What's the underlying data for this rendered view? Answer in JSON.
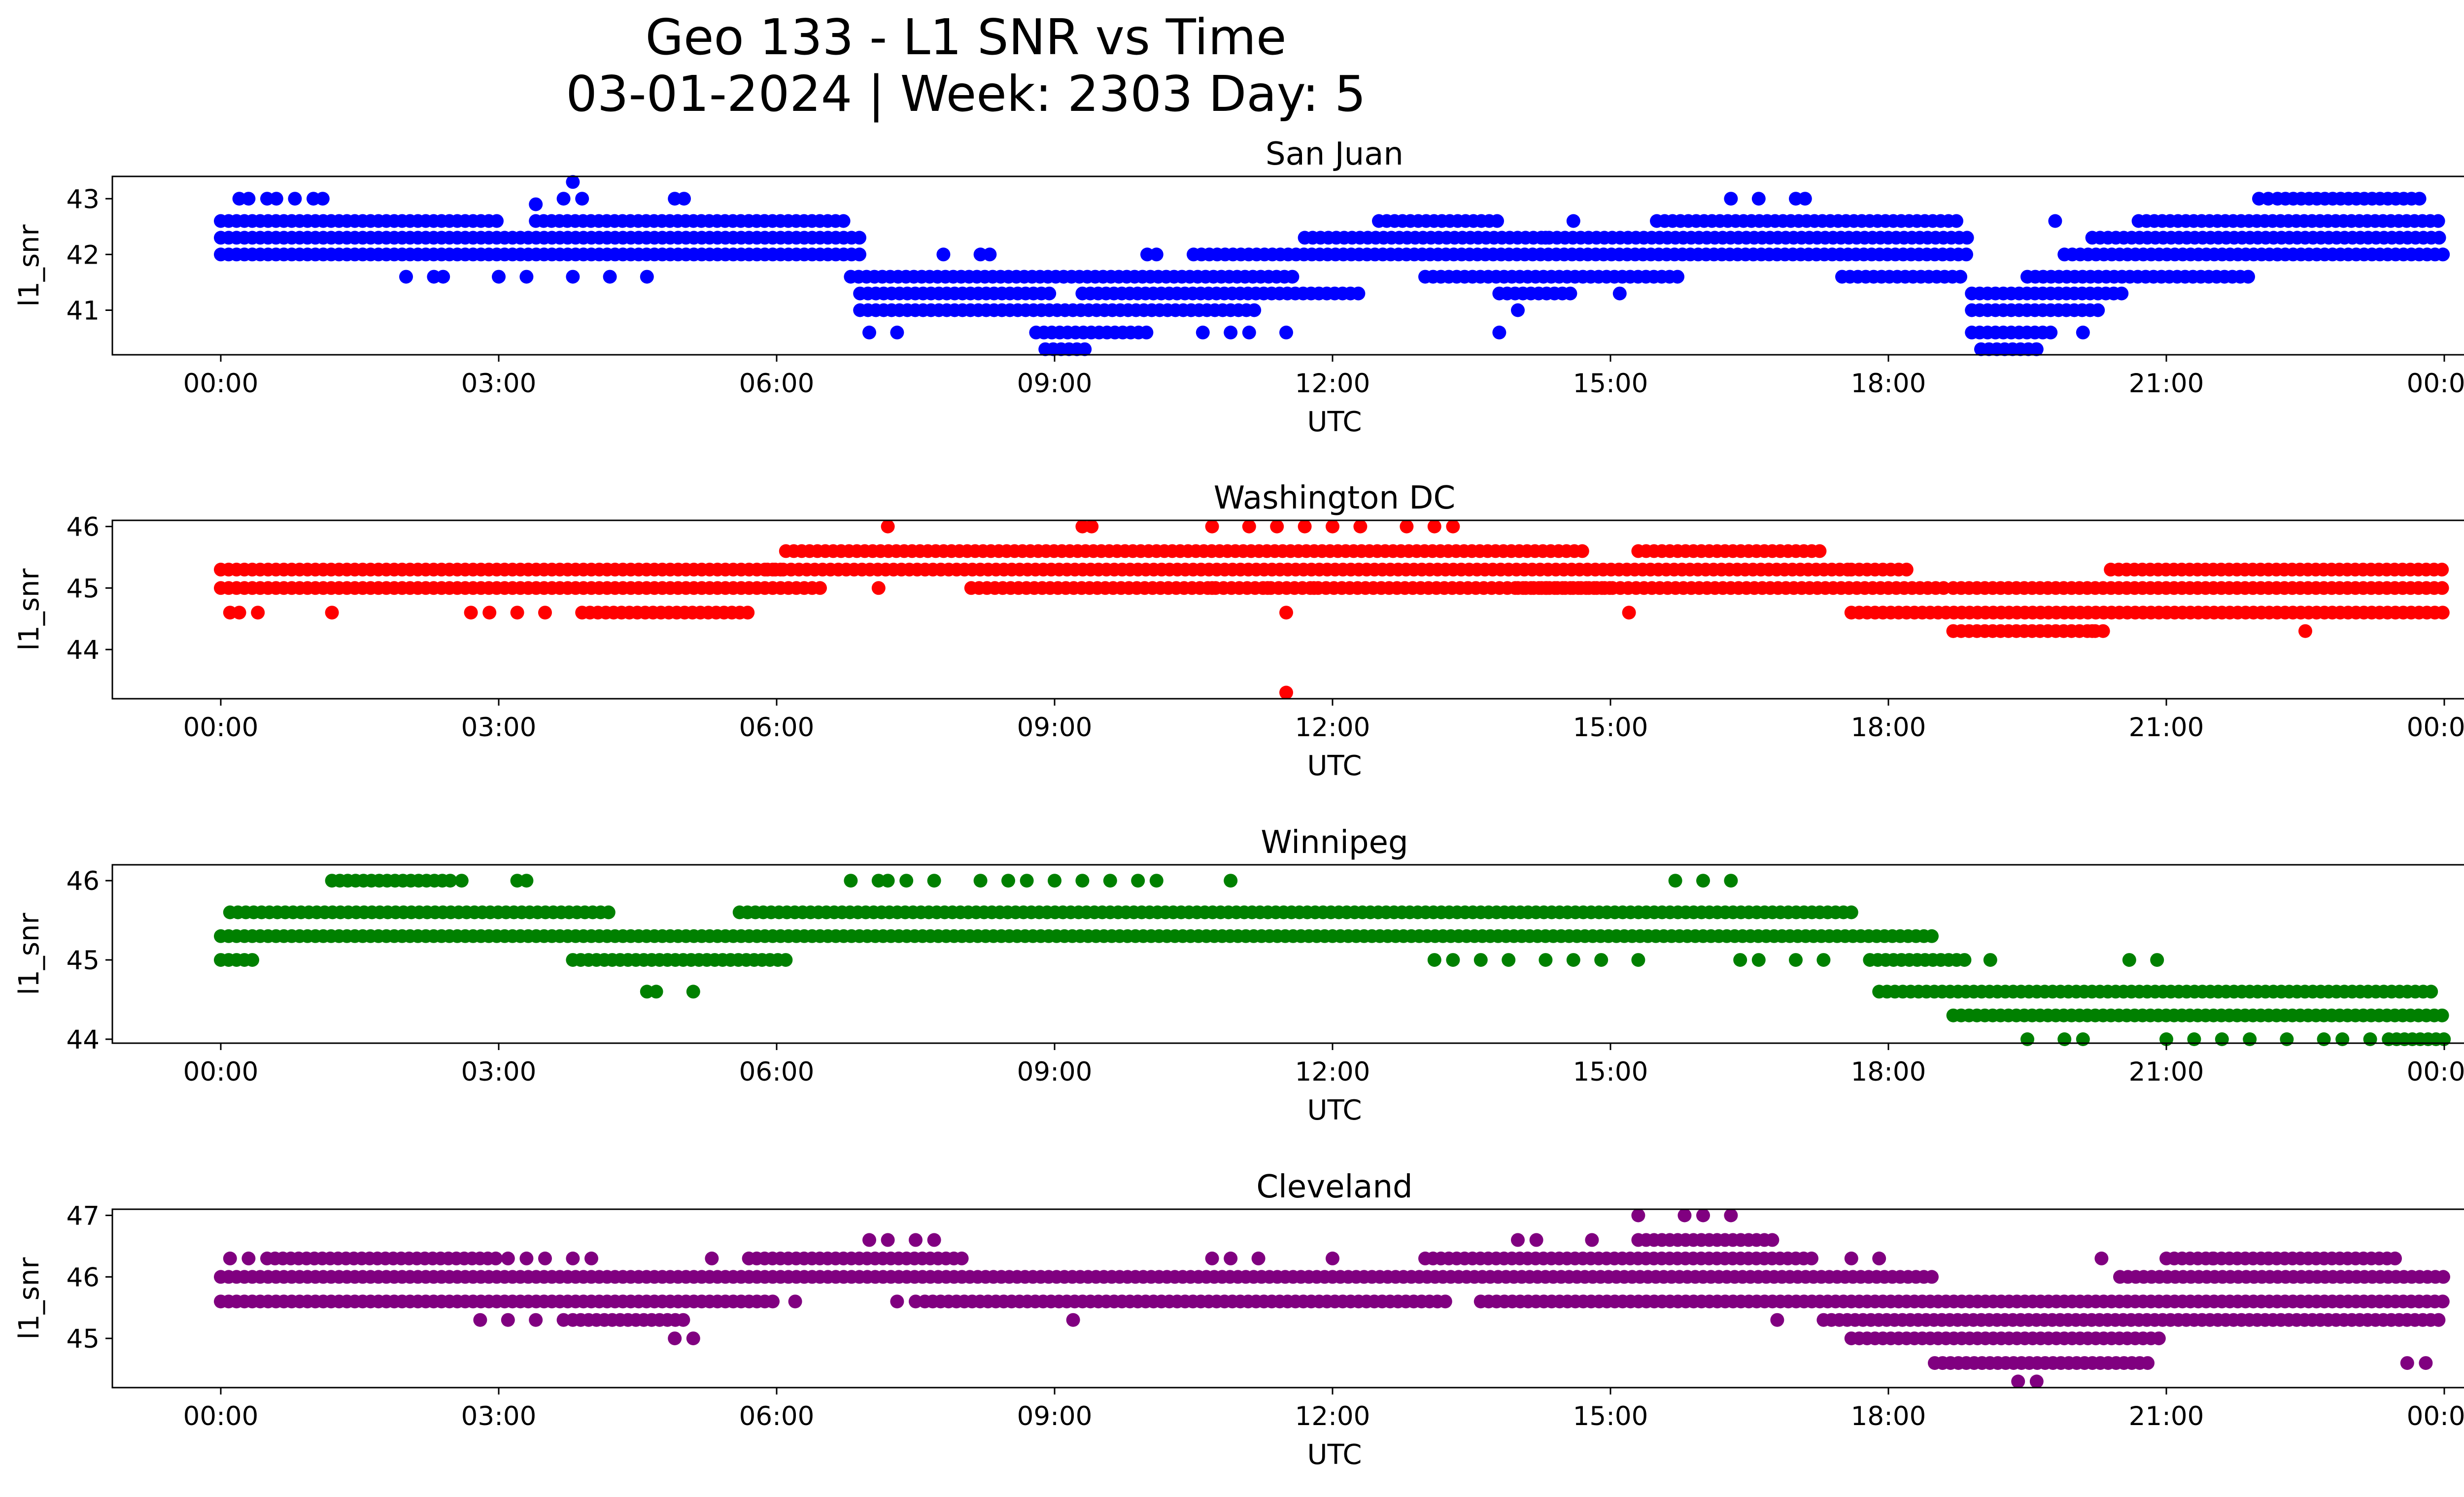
{
  "figure": {
    "title_line1": "Geo 133 - L1 SNR vs Time",
    "title_line2": "03-01-2024 | Week: 2303 Day: 5"
  },
  "chart_data": [
    {
      "type": "scatter",
      "title": "San Juan",
      "xlabel": "UTC",
      "ylabel": "l1_snr",
      "color": "#0000ff",
      "x_tick_labels": [
        "00:00",
        "03:00",
        "06:00",
        "09:00",
        "12:00",
        "15:00",
        "18:00",
        "21:00",
        "00:00"
      ],
      "xlim_hours": [
        0,
        24
      ],
      "ylim": [
        40.2,
        43.4
      ],
      "y_ticks": [
        41,
        42,
        43
      ],
      "grid": false,
      "x_unit": "hours UTC",
      "bands": [
        {
          "y": 42.6,
          "segments": [
            [
              0.0,
              3.0
            ],
            [
              3.4,
              5.9
            ],
            [
              5.7,
              6.8
            ],
            [
              12.5,
              13.8
            ],
            [
              15.5,
              18.8
            ],
            [
              20.7,
              24.0
            ]
          ]
        },
        {
          "y": 42.3,
          "segments": [
            [
              0.0,
              6.9
            ],
            [
              11.7,
              18.9
            ],
            [
              20.2,
              24.0
            ]
          ]
        },
        {
          "y": 42.0,
          "segments": [
            [
              0.0,
              6.9
            ],
            [
              10.5,
              18.9
            ],
            [
              19.9,
              24.0
            ]
          ]
        },
        {
          "y": 41.6,
          "segments": [
            [
              6.8,
              11.6
            ],
            [
              13.0,
              15.8
            ],
            [
              17.5,
              18.8
            ],
            [
              19.5,
              21.9
            ]
          ]
        },
        {
          "y": 41.3,
          "segments": [
            [
              6.9,
              9.0
            ],
            [
              9.3,
              12.3
            ],
            [
              13.8,
              14.6
            ],
            [
              18.9,
              20.6
            ]
          ]
        },
        {
          "y": 41.0,
          "segments": [
            [
              6.9,
              11.2
            ],
            [
              18.9,
              20.3
            ]
          ]
        },
        {
          "y": 40.6,
          "segments": [
            [
              8.8,
              10.0
            ],
            [
              18.9,
              19.8
            ]
          ]
        },
        {
          "y": 40.3,
          "segments": [
            [
              8.9,
              9.4
            ],
            [
              19.0,
              19.6
            ]
          ]
        },
        {
          "y": 43.0,
          "segments": [
            [
              22.2,
              23.8
            ]
          ]
        }
      ],
      "scattered_points": [
        [
          0.2,
          43.0
        ],
        [
          0.3,
          43.0
        ],
        [
          0.5,
          43.0
        ],
        [
          0.6,
          43.0
        ],
        [
          0.8,
          43.0
        ],
        [
          1.0,
          43.0
        ],
        [
          1.1,
          43.0
        ],
        [
          3.4,
          42.9
        ],
        [
          3.7,
          43.0
        ],
        [
          3.8,
          43.3
        ],
        [
          3.9,
          43.0
        ],
        [
          4.9,
          43.0
        ],
        [
          5.0,
          43.0
        ],
        [
          16.3,
          43.0
        ],
        [
          16.6,
          43.0
        ],
        [
          17.0,
          43.0
        ],
        [
          17.1,
          43.0
        ],
        [
          22.0,
          43.0
        ],
        [
          22.1,
          43.0
        ],
        [
          2.0,
          41.6
        ],
        [
          2.3,
          41.6
        ],
        [
          2.4,
          41.6
        ],
        [
          3.0,
          41.6
        ],
        [
          3.3,
          41.6
        ],
        [
          3.8,
          41.6
        ],
        [
          4.2,
          41.6
        ],
        [
          4.6,
          41.6
        ],
        [
          7.0,
          40.6
        ],
        [
          7.3,
          40.6
        ],
        [
          7.8,
          42.0
        ],
        [
          8.2,
          42.0
        ],
        [
          8.3,
          42.0
        ],
        [
          10.0,
          42.0
        ],
        [
          10.1,
          42.0
        ],
        [
          10.6,
          40.6
        ],
        [
          10.9,
          40.6
        ],
        [
          11.1,
          40.6
        ],
        [
          11.5,
          40.6
        ],
        [
          13.8,
          40.6
        ],
        [
          14.0,
          41.0
        ],
        [
          14.3,
          42.3
        ],
        [
          14.6,
          42.6
        ],
        [
          15.1,
          41.3
        ],
        [
          19.6,
          40.3
        ],
        [
          19.8,
          42.6
        ],
        [
          20.1,
          40.6
        ],
        [
          22.2,
          42.0
        ]
      ]
    },
    {
      "type": "scatter",
      "title": "Washington DC",
      "xlabel": "UTC",
      "ylabel": "l1_snr",
      "color": "#ff0000",
      "x_tick_labels": [
        "00:00",
        "03:00",
        "06:00",
        "09:00",
        "12:00",
        "15:00",
        "18:00",
        "21:00",
        "00:00"
      ],
      "xlim_hours": [
        0,
        24
      ],
      "ylim": [
        43.2,
        46.1
      ],
      "y_ticks": [
        44,
        45,
        46
      ],
      "grid": false,
      "x_unit": "hours UTC",
      "bands": [
        {
          "y": 45.6,
          "segments": [
            [
              6.1,
              14.7
            ],
            [
              15.3,
              17.3
            ]
          ]
        },
        {
          "y": 45.3,
          "segments": [
            [
              0.0,
              6.1
            ],
            [
              5.9,
              17.6
            ],
            [
              17.6,
              18.2
            ],
            [
              20.4,
              24.0
            ]
          ]
        },
        {
          "y": 45.0,
          "segments": [
            [
              0.0,
              6.5
            ],
            [
              8.1,
              15.0
            ],
            [
              14.0,
              18.6
            ],
            [
              18.7,
              24.0
            ]
          ]
        },
        {
          "y": 44.6,
          "segments": [
            [
              3.9,
              5.7
            ],
            [
              17.6,
              24.0
            ]
          ]
        },
        {
          "y": 44.3,
          "segments": [
            [
              18.7,
              20.4
            ]
          ]
        }
      ],
      "scattered_points": [
        [
          0.1,
          44.6
        ],
        [
          0.2,
          44.6
        ],
        [
          0.4,
          44.6
        ],
        [
          1.2,
          44.6
        ],
        [
          2.7,
          44.6
        ],
        [
          2.9,
          44.6
        ],
        [
          3.2,
          44.6
        ],
        [
          3.5,
          44.6
        ],
        [
          7.2,
          46.0
        ],
        [
          9.3,
          46.0
        ],
        [
          9.4,
          46.0
        ],
        [
          10.7,
          46.0
        ],
        [
          11.1,
          46.0
        ],
        [
          11.4,
          46.0
        ],
        [
          11.7,
          46.0
        ],
        [
          12.0,
          46.0
        ],
        [
          12.3,
          46.0
        ],
        [
          12.8,
          46.0
        ],
        [
          13.1,
          46.0
        ],
        [
          13.3,
          46.0
        ],
        [
          7.1,
          45.0
        ],
        [
          10.7,
          45.0
        ],
        [
          11.3,
          45.0
        ],
        [
          11.8,
          45.0
        ],
        [
          11.5,
          44.6
        ],
        [
          11.5,
          43.3
        ],
        [
          14.3,
          45.0
        ],
        [
          15.2,
          44.6
        ],
        [
          18.7,
          44.3
        ],
        [
          20.2,
          44.3
        ],
        [
          22.5,
          44.3
        ]
      ]
    },
    {
      "type": "scatter",
      "title": "Winnipeg",
      "xlabel": "UTC",
      "ylabel": "l1_snr",
      "color": "#008000",
      "x_tick_labels": [
        "00:00",
        "03:00",
        "06:00",
        "09:00",
        "12:00",
        "15:00",
        "18:00",
        "21:00",
        "00:00"
      ],
      "xlim_hours": [
        0,
        24
      ],
      "ylim": [
        43.95,
        46.2
      ],
      "y_ticks": [
        44,
        45,
        46
      ],
      "grid": false,
      "x_unit": "hours UTC",
      "bands": [
        {
          "y": 45.6,
          "segments": [
            [
              0.1,
              4.2
            ],
            [
              5.6,
              17.6
            ]
          ]
        },
        {
          "y": 45.3,
          "segments": [
            [
              0.0,
              18.5
            ]
          ]
        },
        {
          "y": 45.0,
          "segments": [
            [
              0.0,
              0.4
            ],
            [
              3.8,
              6.1
            ],
            [
              17.8,
              18.9
            ]
          ]
        },
        {
          "y": 44.6,
          "segments": [
            [
              17.9,
              23.9
            ]
          ]
        },
        {
          "y": 44.3,
          "segments": [
            [
              18.7,
              24.0
            ]
          ]
        },
        {
          "y": 44.0,
          "segments": [
            [
              23.4,
              24.0
            ]
          ]
        },
        {
          "y": 46.0,
          "segments": [
            [
              1.2,
              2.5
            ]
          ]
        }
      ],
      "scattered_points": [
        [
          2.6,
          46.0
        ],
        [
          3.2,
          46.0
        ],
        [
          3.3,
          46.0
        ],
        [
          6.8,
          46.0
        ],
        [
          7.1,
          46.0
        ],
        [
          7.2,
          46.0
        ],
        [
          7.4,
          46.0
        ],
        [
          7.7,
          46.0
        ],
        [
          8.2,
          46.0
        ],
        [
          8.5,
          46.0
        ],
        [
          8.7,
          46.0
        ],
        [
          9.0,
          46.0
        ],
        [
          9.3,
          46.0
        ],
        [
          9.6,
          46.0
        ],
        [
          9.9,
          46.0
        ],
        [
          10.1,
          46.0
        ],
        [
          10.9,
          46.0
        ],
        [
          15.7,
          46.0
        ],
        [
          16.0,
          46.0
        ],
        [
          16.3,
          46.0
        ],
        [
          4.6,
          44.6
        ],
        [
          4.7,
          44.6
        ],
        [
          5.1,
          44.6
        ],
        [
          13.1,
          45.0
        ],
        [
          13.3,
          45.0
        ],
        [
          13.6,
          45.0
        ],
        [
          13.9,
          45.0
        ],
        [
          14.3,
          45.0
        ],
        [
          14.6,
          45.0
        ],
        [
          14.9,
          45.0
        ],
        [
          15.3,
          45.0
        ],
        [
          16.4,
          45.0
        ],
        [
          16.6,
          45.0
        ],
        [
          17.0,
          45.0
        ],
        [
          17.3,
          45.0
        ],
        [
          19.1,
          45.0
        ],
        [
          20.6,
          45.0
        ],
        [
          20.9,
          45.0
        ],
        [
          19.5,
          44.0
        ],
        [
          19.9,
          44.0
        ],
        [
          20.1,
          44.0
        ],
        [
          21.0,
          44.0
        ],
        [
          21.3,
          44.0
        ],
        [
          21.6,
          44.0
        ],
        [
          21.9,
          44.0
        ],
        [
          22.3,
          44.0
        ],
        [
          22.7,
          44.0
        ],
        [
          22.9,
          44.0
        ],
        [
          23.2,
          44.0
        ]
      ]
    },
    {
      "type": "scatter",
      "title": "Cleveland",
      "xlabel": "UTC",
      "ylabel": "l1_snr",
      "color": "#800080",
      "x_tick_labels": [
        "00:00",
        "03:00",
        "06:00",
        "09:00",
        "12:00",
        "15:00",
        "18:00",
        "21:00",
        "00:00"
      ],
      "xlim_hours": [
        0,
        24
      ],
      "ylim": [
        44.2,
        47.1
      ],
      "y_ticks": [
        45,
        46,
        47
      ],
      "grid": false,
      "x_unit": "hours UTC",
      "bands": [
        {
          "y": 46.3,
          "segments": [
            [
              0.5,
              3.0
            ],
            [
              5.7,
              8.0
            ],
            [
              13.0,
              17.2
            ],
            [
              21.0,
              23.5
            ]
          ]
        },
        {
          "y": 46.0,
          "segments": [
            [
              0.0,
              18.5
            ],
            [
              20.5,
              24.0
            ]
          ]
        },
        {
          "y": 45.6,
          "segments": [
            [
              0.0,
              6.0
            ],
            [
              7.6,
              13.3
            ],
            [
              13.6,
              24.0
            ]
          ]
        },
        {
          "y": 45.3,
          "segments": [
            [
              3.8,
              5.0
            ],
            [
              17.3,
              24.0
            ]
          ]
        },
        {
          "y": 45.0,
          "segments": [
            [
              17.6,
              21.0
            ]
          ]
        },
        {
          "y": 44.6,
          "segments": [
            [
              18.5,
              20.8
            ]
          ]
        },
        {
          "y": 46.6,
          "segments": [
            [
              15.3,
              16.8
            ]
          ]
        }
      ],
      "scattered_points": [
        [
          0.1,
          46.3
        ],
        [
          0.3,
          46.3
        ],
        [
          3.1,
          46.3
        ],
        [
          3.3,
          46.3
        ],
        [
          3.5,
          46.3
        ],
        [
          3.8,
          46.3
        ],
        [
          4.0,
          46.3
        ],
        [
          5.3,
          46.3
        ],
        [
          7.0,
          46.6
        ],
        [
          7.2,
          46.6
        ],
        [
          7.5,
          46.6
        ],
        [
          7.7,
          46.6
        ],
        [
          10.7,
          46.3
        ],
        [
          10.9,
          46.3
        ],
        [
          11.2,
          46.3
        ],
        [
          12.0,
          46.3
        ],
        [
          14.0,
          46.6
        ],
        [
          14.2,
          46.6
        ],
        [
          15.3,
          47.0
        ],
        [
          15.8,
          47.0
        ],
        [
          16.0,
          47.0
        ],
        [
          16.3,
          47.0
        ],
        [
          14.8,
          46.6
        ],
        [
          17.6,
          46.3
        ],
        [
          17.9,
          46.3
        ],
        [
          20.3,
          46.3
        ],
        [
          21.5,
          46.3
        ],
        [
          22.1,
          46.3
        ],
        [
          2.8,
          45.3
        ],
        [
          3.1,
          45.3
        ],
        [
          3.4,
          45.3
        ],
        [
          3.7,
          45.3
        ],
        [
          4.9,
          45.0
        ],
        [
          5.1,
          45.0
        ],
        [
          9.2,
          45.3
        ],
        [
          16.8,
          45.3
        ],
        [
          6.2,
          45.6
        ],
        [
          7.3,
          45.6
        ],
        [
          7.5,
          45.6
        ],
        [
          19.4,
          44.3
        ],
        [
          19.6,
          44.3
        ],
        [
          23.6,
          44.6
        ],
        [
          23.8,
          44.6
        ]
      ]
    }
  ]
}
